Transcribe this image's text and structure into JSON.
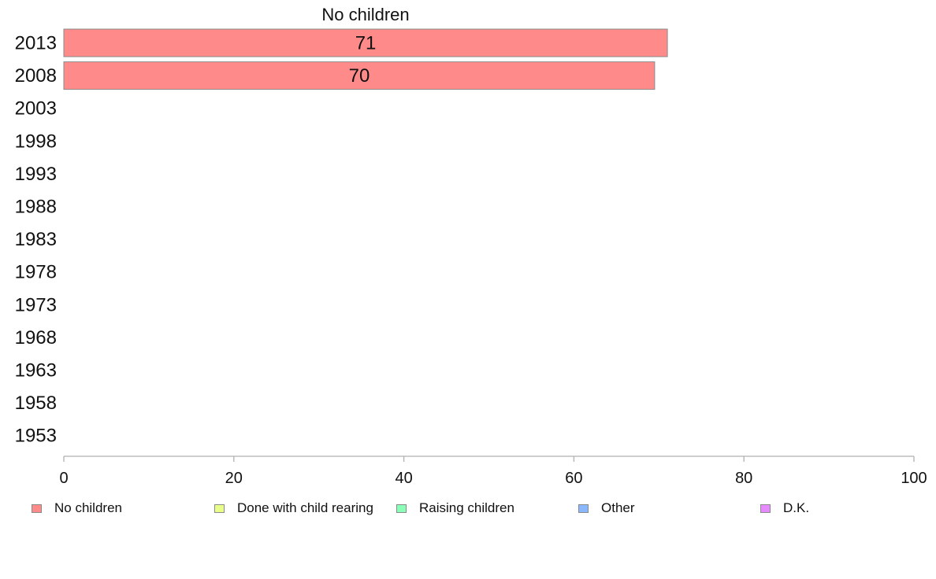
{
  "chart_data": {
    "type": "bar",
    "orientation": "horizontal",
    "stacked": true,
    "categories": [
      "2013",
      "2008",
      "2003",
      "1998",
      "1993",
      "1988",
      "1983",
      "1978",
      "1973",
      "1968",
      "1963",
      "1958",
      "1953"
    ],
    "series": [
      {
        "name": "No children",
        "color": "#ff8a8a",
        "values": [
          71,
          69.5,
          null,
          null,
          null,
          null,
          null,
          null,
          null,
          null,
          null,
          null,
          null
        ],
        "labels": [
          "71",
          "70",
          "",
          "",
          "",
          "",
          "",
          "",
          "",
          "",
          "",
          "",
          ""
        ]
      },
      {
        "name": "Done with child rearing",
        "color": "#e8ff8a",
        "values": [
          null,
          null,
          null,
          null,
          null,
          null,
          null,
          null,
          null,
          null,
          null,
          null,
          null
        ]
      },
      {
        "name": "Raising children",
        "color": "#8affb8",
        "values": [
          null,
          null,
          null,
          null,
          null,
          null,
          null,
          null,
          null,
          null,
          null,
          null,
          null
        ]
      },
      {
        "name": "Other",
        "color": "#8ab8ff",
        "values": [
          null,
          null,
          null,
          null,
          null,
          null,
          null,
          null,
          null,
          null,
          null,
          null,
          null
        ]
      },
      {
        "name": "D.K.",
        "color": "#e88aff",
        "values": [
          null,
          null,
          null,
          null,
          null,
          null,
          null,
          null,
          null,
          null,
          null,
          null,
          null
        ]
      }
    ],
    "series_title": "No children",
    "xlim": [
      0,
      100
    ],
    "xticks": [
      "0",
      "20",
      "40",
      "60",
      "80",
      "100"
    ],
    "grid": false,
    "legend_position": "bottom"
  }
}
